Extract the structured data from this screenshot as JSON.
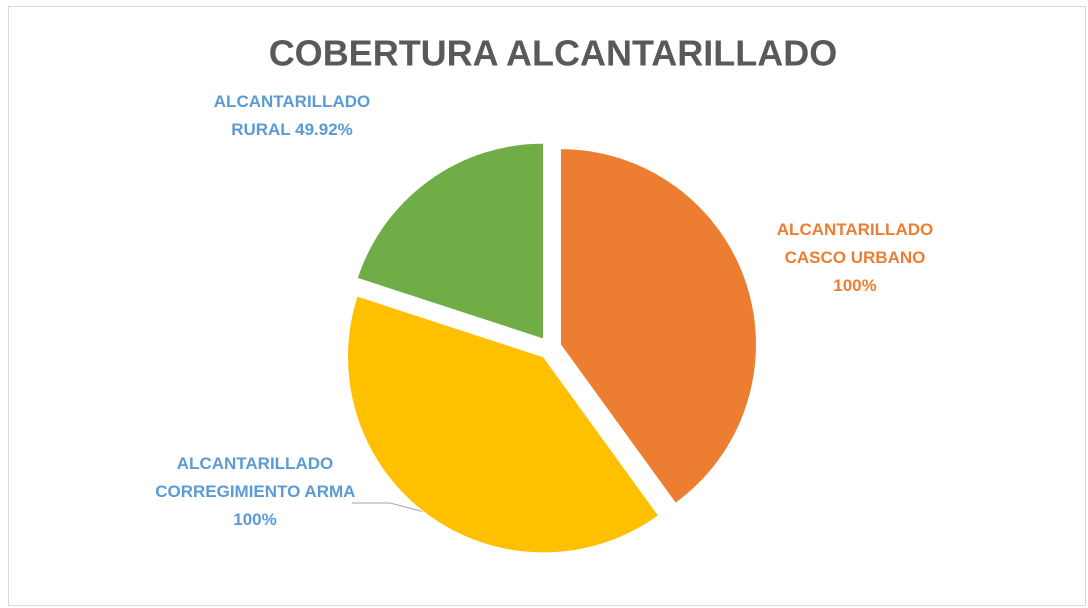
{
  "chart_data": {
    "type": "pie",
    "title": "COBERTURA ALCANTARILLADO",
    "categories": [
      "ALCANTARILLADO CASCO URBANO",
      "ALCANTARILLADO CORREGIMIENTO ARMA",
      "ALCANTARILLADO RURAL"
    ],
    "values": [
      100,
      100,
      49.92
    ],
    "value_labels": [
      "100%",
      "100%",
      "49.92%"
    ],
    "colors": [
      "#ED7D31",
      "#FFC000",
      "#70AD47"
    ]
  }
}
